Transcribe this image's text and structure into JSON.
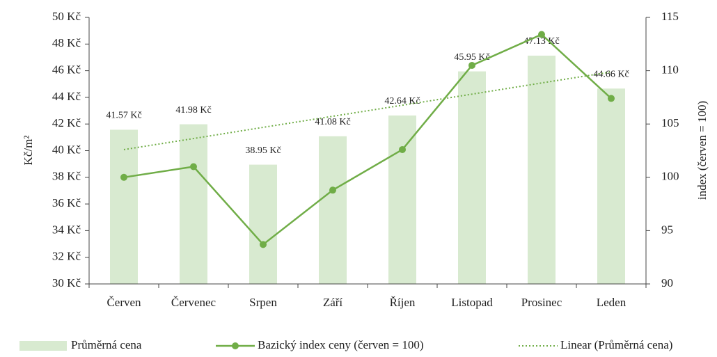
{
  "chart_data": {
    "type": "bar",
    "categories": [
      "Červen",
      "Červenec",
      "Srpen",
      "Září",
      "Říjen",
      "Listopad",
      "Prosinec",
      "Leden"
    ],
    "ylabel": "Kč/m²",
    "y2label": "index (červen = 100)",
    "ylim": [
      30,
      50
    ],
    "yticks": [
      {
        "value": 30,
        "label": "30 Kč"
      },
      {
        "value": 32,
        "label": "32 Kč"
      },
      {
        "value": 34,
        "label": "34 Kč"
      },
      {
        "value": 36,
        "label": "36 Kč"
      },
      {
        "value": 38,
        "label": "38 Kč"
      },
      {
        "value": 40,
        "label": "40 Kč"
      },
      {
        "value": 42,
        "label": "42 Kč"
      },
      {
        "value": 44,
        "label": "44 Kč"
      },
      {
        "value": 46,
        "label": "46 Kč"
      },
      {
        "value": 48,
        "label": "48 Kč"
      },
      {
        "value": 50,
        "label": "50 Kč"
      }
    ],
    "y2lim": [
      90,
      115
    ],
    "y2ticks": [
      90,
      95,
      100,
      105,
      110,
      115
    ],
    "series": [
      {
        "name": "Průměrná cena",
        "type": "bar",
        "color": "#d8ead0",
        "values": [
          41.57,
          41.98,
          38.95,
          41.08,
          42.64,
          45.95,
          47.13,
          44.66
        ],
        "value_labels": [
          "41.57 Kč",
          "41.98 Kč",
          "38.95 Kč",
          "41.08 Kč",
          "42.64 Kč",
          "45.95 Kč",
          "47.13 Kč",
          "44.66 Kč"
        ]
      },
      {
        "name": "Bazický index ceny (červen = 100)",
        "type": "line",
        "axis": "y2",
        "color": "#70ad47",
        "values": [
          100,
          101.0,
          93.7,
          98.8,
          102.6,
          110.5,
          113.4,
          107.4
        ]
      },
      {
        "name": "Linear (Průměrná cena)",
        "type": "trend",
        "color": "#70ad47",
        "values": [
          40.08,
          40.91,
          41.75,
          42.58,
          43.41,
          44.24,
          45.08,
          45.91
        ]
      }
    ]
  }
}
